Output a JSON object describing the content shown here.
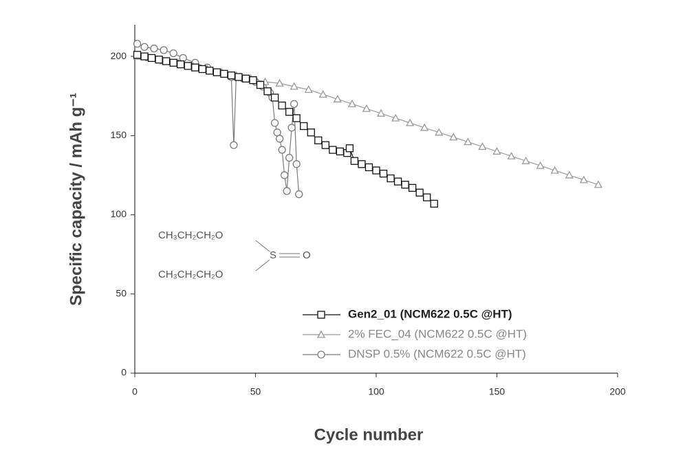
{
  "chart_data": {
    "type": "line",
    "x_label": "Cycle number",
    "y_label": "Specific capacity / mAh g⁻¹",
    "xlim": [
      0,
      200
    ],
    "xticks": [
      0,
      50,
      100,
      150,
      200
    ],
    "ylim": [
      0,
      220
    ],
    "yticks": [
      0,
      50,
      100,
      150,
      200
    ],
    "grid": false,
    "legend": "lower right",
    "series": [
      {
        "name": "Gen2_01 (NCM622 0.5C @HT)",
        "color": "#111111",
        "marker": "square",
        "x": [
          1,
          4,
          7,
          10,
          13,
          16,
          19,
          22,
          25,
          28,
          31,
          34,
          37,
          40,
          43,
          46,
          49,
          52,
          55,
          58,
          61,
          64,
          67,
          70,
          73,
          76,
          79,
          82,
          85,
          88,
          89,
          91,
          94,
          97,
          100,
          103,
          106,
          109,
          112,
          115,
          118,
          121,
          124
        ],
        "values": [
          201,
          200,
          199,
          198,
          197,
          196,
          195,
          194,
          193,
          192,
          191,
          190,
          189,
          188,
          187,
          186,
          185,
          182,
          178,
          174,
          169,
          165,
          161,
          156,
          152,
          147,
          144,
          141,
          140,
          139,
          142,
          134,
          132,
          130,
          128,
          126,
          123,
          121,
          119,
          117,
          114,
          111,
          107
        ]
      },
      {
        "name": "2% FEC_04 (NCM622 0.5C @HT)",
        "color": "#9a9a9a",
        "marker": "triangle",
        "x": [
          1,
          6,
          12,
          18,
          24,
          30,
          36,
          42,
          48,
          54,
          60,
          66,
          72,
          78,
          84,
          90,
          96,
          102,
          108,
          114,
          120,
          126,
          132,
          138,
          144,
          150,
          156,
          162,
          168,
          174,
          180,
          186,
          192
        ],
        "values": [
          200,
          199,
          197,
          196,
          194,
          192,
          190,
          188,
          186,
          184,
          183,
          181,
          179,
          176,
          173,
          170,
          167,
          164,
          161,
          158,
          155,
          152,
          149,
          146,
          143,
          140,
          137,
          134,
          131,
          128,
          125,
          122,
          119
        ]
      },
      {
        "name": "DNSP 0.5% (NCM622 0.5C @HT)",
        "color": "#7a7a7a",
        "marker": "circle",
        "x": [
          1,
          4,
          8,
          12,
          16,
          20,
          25,
          30,
          35,
          40,
          41,
          42,
          45,
          50,
          53,
          56,
          57,
          58,
          59,
          60,
          61,
          62,
          63,
          64,
          65,
          66,
          67,
          68
        ],
        "values": [
          208,
          206,
          205,
          204,
          202,
          199,
          196,
          193,
          190,
          187,
          144,
          187,
          186,
          184,
          181,
          177,
          174,
          158,
          152,
          148,
          141,
          125,
          115,
          136,
          155,
          170,
          132,
          113
        ]
      }
    ],
    "annotations": [
      "CH₃CH₂CH₂O",
      "CH₃CH₂CH₂O",
      "S",
      "O"
    ]
  }
}
